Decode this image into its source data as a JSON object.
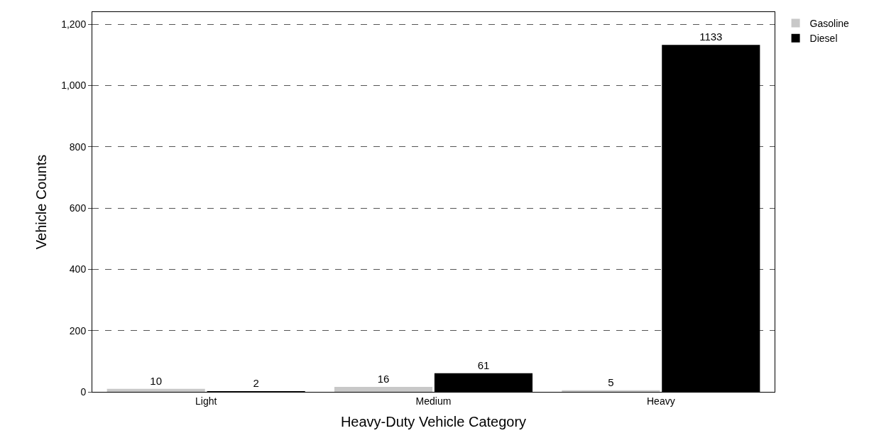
{
  "chart_data": {
    "type": "bar",
    "xlabel": "Heavy-Duty Vehicle Category",
    "ylabel": "Vehicle Counts",
    "categories": [
      "Light",
      "Medium",
      "Heavy"
    ],
    "series": [
      {
        "name": "Gasoline",
        "color": "#c8c8c8",
        "values": [
          10,
          16,
          5
        ]
      },
      {
        "name": "Diesel",
        "color": "#000000",
        "values": [
          2,
          61,
          1133
        ]
      }
    ],
    "ylim": [
      0,
      1240
    ],
    "yticks": [
      0,
      200,
      400,
      600,
      800,
      {
        "value": 1000,
        "label": "1,000"
      },
      {
        "value": 1200,
        "label": "1,200"
      }
    ],
    "grid": "y",
    "legend": "top right",
    "data_labels": true
  }
}
